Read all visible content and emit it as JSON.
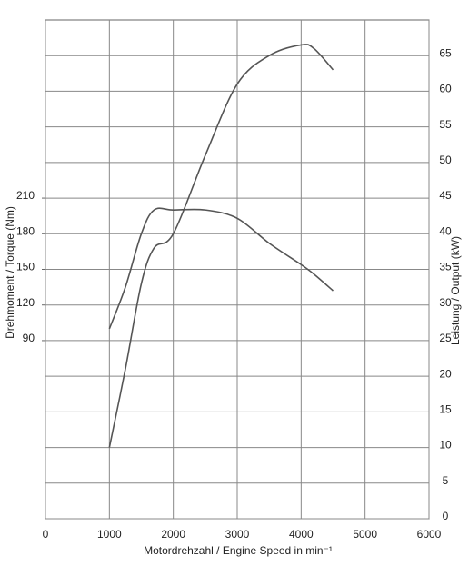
{
  "chart_data": {
    "type": "line",
    "xlabel": "Motordrehzahl / Engine Speed in min⁻¹",
    "ylabel": "Drehmoment / Torque (Nm)",
    "y2label": "Leistung / Output (kW)",
    "x": [
      1000,
      1250,
      1500,
      1700,
      2000,
      2500,
      3000,
      3500,
      4000,
      4200,
      4500
    ],
    "series": [
      {
        "name": "Torque",
        "color": "#555555",
        "values": [
          100,
          135,
          180,
          200,
          200,
          200,
          193,
          172,
          154,
          146,
          132
        ]
      },
      {
        "name": "Output",
        "color": "#555555",
        "axis": "y2",
        "values": [
          10,
          21,
          33,
          38,
          40,
          51,
          61,
          65,
          66.5,
          66,
          63
        ]
      }
    ],
    "xlim": [
      0,
      6000
    ],
    "xticks": [
      0,
      1000,
      2000,
      3000,
      4000,
      5000,
      6000
    ],
    "ylim": [
      -60,
      360
    ],
    "yticks": [
      90,
      120,
      150,
      180,
      210
    ],
    "y2lim": [
      0,
      70
    ],
    "y2ticks": [
      0,
      5,
      10,
      15,
      20,
      25,
      30,
      35,
      40,
      45,
      50,
      55,
      60,
      65
    ],
    "grid": true
  }
}
